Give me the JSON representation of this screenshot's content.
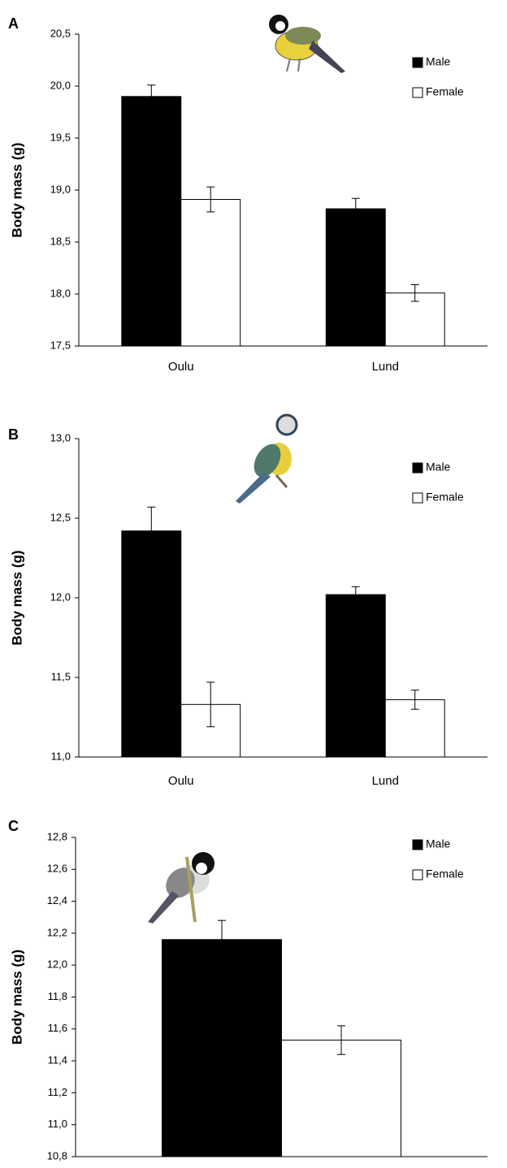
{
  "chart_data": [
    {
      "type": "bar",
      "panel_label": "A",
      "ylabel": "Body mass (g)",
      "categories": [
        "Oulu",
        "Lund"
      ],
      "series": [
        {
          "name": "Male",
          "color": "#000000",
          "values": [
            19.9,
            18.82
          ],
          "errors": [
            0.11,
            0.1
          ]
        },
        {
          "name": "Female",
          "color": "#ffffff",
          "values": [
            18.91,
            18.01
          ],
          "errors": [
            0.12,
            0.08
          ]
        }
      ],
      "ylim": [
        17.5,
        20.5
      ],
      "yticks": [
        {
          "value": 17.5,
          "label": "17,5"
        },
        {
          "value": 18,
          "label": "18,0"
        },
        {
          "value": 18.5,
          "label": "18,5"
        },
        {
          "value": 19,
          "label": "19,0"
        },
        {
          "value": 19.5,
          "label": "19,5"
        },
        {
          "value": 20,
          "label": "20,0"
        },
        {
          "value": 20.5,
          "label": "20,5"
        }
      ],
      "grid": false,
      "legend": "upper right"
    },
    {
      "type": "bar",
      "panel_label": "B",
      "ylabel": "Body mass (g)",
      "categories": [
        "Oulu",
        "Lund"
      ],
      "series": [
        {
          "name": "Male",
          "color": "#000000",
          "values": [
            12.42,
            12.02
          ],
          "errors": [
            0.15,
            0.05
          ]
        },
        {
          "name": "Female",
          "color": "#ffffff",
          "values": [
            11.33,
            11.36
          ],
          "errors": [
            0.14,
            0.06
          ]
        }
      ],
      "ylim": [
        11,
        13
      ],
      "yticks": [
        {
          "value": 11,
          "label": "11,0"
        },
        {
          "value": 11.5,
          "label": "11,5"
        },
        {
          "value": 12,
          "label": "12,0"
        },
        {
          "value": 12.5,
          "label": "12,5"
        },
        {
          "value": 13,
          "label": "13,0"
        }
      ],
      "grid": false,
      "legend": "upper right"
    },
    {
      "type": "bar",
      "panel_label": "C",
      "ylabel": "Body mass (g)",
      "categories": [
        null
      ],
      "series": [
        {
          "name": "Male",
          "color": "#000000",
          "values": [
            12.16
          ],
          "errors": [
            0.12
          ]
        },
        {
          "name": "Female",
          "color": "#ffffff",
          "values": [
            11.53
          ],
          "errors": [
            0.09
          ]
        }
      ],
      "ylim": [
        10.8,
        12.8
      ],
      "yticks": [
        {
          "value": 10.8,
          "label": "10,8"
        },
        {
          "value": 11,
          "label": "11,0"
        },
        {
          "value": 11.2,
          "label": "11,2"
        },
        {
          "value": 11.4,
          "label": "11,4"
        },
        {
          "value": 11.6,
          "label": "11,6"
        },
        {
          "value": 11.8,
          "label": "11,8"
        },
        {
          "value": 12,
          "label": "12,0"
        },
        {
          "value": 12.2,
          "label": "12,2"
        },
        {
          "value": 12.4,
          "label": "12,4"
        },
        {
          "value": 12.6,
          "label": "12,6"
        },
        {
          "value": 12.8,
          "label": "12,8"
        }
      ],
      "grid": false,
      "legend": "upper right"
    }
  ]
}
